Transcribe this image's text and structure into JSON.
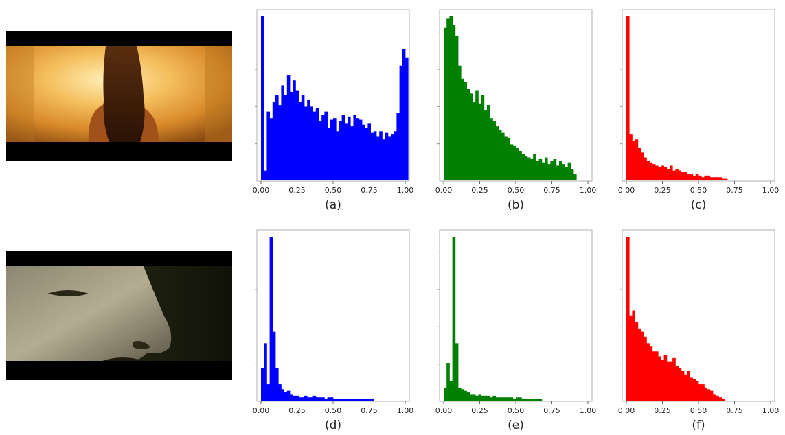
{
  "thumbnails": [
    {
      "name": "woman-back-frame",
      "description_icon": "film-frame-warm-orange"
    },
    {
      "name": "man-face-frame",
      "description_icon": "film-frame-dark-closeup"
    }
  ],
  "chart_data": [
    {
      "type": "bar",
      "caption": "(a)",
      "color": "#0000ff",
      "xlim": [
        0,
        1
      ],
      "xticks": [
        "0.00",
        "0.25",
        "0.50",
        "0.75",
        "1.00"
      ],
      "bin_width": 0.02,
      "values": [
        1.0,
        0.06,
        0.42,
        0.38,
        0.48,
        0.52,
        0.46,
        0.58,
        0.52,
        0.64,
        0.54,
        0.61,
        0.55,
        0.48,
        0.52,
        0.45,
        0.49,
        0.45,
        0.42,
        0.44,
        0.36,
        0.4,
        0.42,
        0.32,
        0.37,
        0.38,
        0.3,
        0.36,
        0.4,
        0.35,
        0.39,
        0.33,
        0.4,
        0.38,
        0.37,
        0.34,
        0.32,
        0.35,
        0.29,
        0.3,
        0.27,
        0.3,
        0.25,
        0.29,
        0.27,
        0.28,
        0.3,
        0.41,
        0.7,
        0.8,
        0.75
      ]
    },
    {
      "type": "bar",
      "caption": "(b)",
      "color": "#008000",
      "xlim": [
        0,
        1
      ],
      "xticks": [
        "0.00",
        "0.25",
        "0.50",
        "0.75",
        "1.00"
      ],
      "bin_width": 0.02,
      "values": [
        0.93,
        0.99,
        1.0,
        0.95,
        0.88,
        0.7,
        0.62,
        0.6,
        0.56,
        0.53,
        0.48,
        0.55,
        0.47,
        0.52,
        0.43,
        0.46,
        0.38,
        0.36,
        0.33,
        0.31,
        0.29,
        0.27,
        0.26,
        0.22,
        0.21,
        0.2,
        0.18,
        0.16,
        0.15,
        0.14,
        0.13,
        0.16,
        0.12,
        0.13,
        0.11,
        0.14,
        0.1,
        0.12,
        0.13,
        0.09,
        0.12,
        0.1,
        0.08,
        0.11,
        0.07,
        0.04
      ]
    },
    {
      "type": "bar",
      "caption": "(c)",
      "color": "#ff0000",
      "xlim": [
        0,
        1
      ],
      "xticks": [
        "0.00",
        "0.25",
        "0.50",
        "0.75",
        "1.00"
      ],
      "bin_width": 0.02,
      "values": [
        1.0,
        0.28,
        0.24,
        0.25,
        0.2,
        0.17,
        0.14,
        0.12,
        0.11,
        0.1,
        0.09,
        0.08,
        0.09,
        0.08,
        0.07,
        0.09,
        0.06,
        0.07,
        0.06,
        0.05,
        0.05,
        0.04,
        0.04,
        0.03,
        0.04,
        0.03,
        0.02,
        0.03,
        0.03,
        0.02,
        0.02,
        0.02,
        0.02,
        0.01,
        0.01
      ]
    },
    {
      "type": "bar",
      "caption": "(d)",
      "color": "#0000ff",
      "xlim": [
        0,
        1
      ],
      "xticks": [
        "0.00",
        "0.25",
        "0.50",
        "0.75",
        "1.00"
      ],
      "bin_width": 0.02,
      "values": [
        0.2,
        0.35,
        0.1,
        1.0,
        0.42,
        0.2,
        0.1,
        0.07,
        0.05,
        0.06,
        0.04,
        0.03,
        0.03,
        0.02,
        0.02,
        0.03,
        0.02,
        0.02,
        0.03,
        0.02,
        0.02,
        0.02,
        0.01,
        0.02,
        0.02,
        0.01,
        0.01,
        0.01,
        0.01,
        0.01,
        0.01,
        0.01,
        0.01,
        0.01,
        0.01,
        0.01,
        0.01,
        0.01,
        0.01
      ]
    },
    {
      "type": "bar",
      "caption": "(e)",
      "color": "#008000",
      "xlim": [
        0,
        1
      ],
      "xticks": [
        "0.00",
        "0.25",
        "0.50",
        "0.75",
        "1.00"
      ],
      "bin_width": 0.02,
      "values": [
        0.08,
        0.23,
        0.12,
        1.0,
        0.35,
        0.08,
        0.07,
        0.06,
        0.05,
        0.04,
        0.04,
        0.03,
        0.04,
        0.03,
        0.03,
        0.03,
        0.02,
        0.03,
        0.02,
        0.02,
        0.02,
        0.02,
        0.02,
        0.02,
        0.01,
        0.02,
        0.02,
        0.01,
        0.01,
        0.01,
        0.01,
        0.01,
        0.01,
        0.01
      ]
    },
    {
      "type": "bar",
      "caption": "(f)",
      "color": "#ff0000",
      "xlim": [
        0,
        1
      ],
      "xticks": [
        "0.00",
        "0.25",
        "0.50",
        "0.75",
        "1.00"
      ],
      "bin_width": 0.02,
      "values": [
        1.0,
        0.52,
        0.55,
        0.48,
        0.44,
        0.42,
        0.39,
        0.35,
        0.33,
        0.3,
        0.3,
        0.27,
        0.25,
        0.28,
        0.24,
        0.24,
        0.26,
        0.21,
        0.2,
        0.18,
        0.16,
        0.18,
        0.14,
        0.13,
        0.12,
        0.1,
        0.1,
        0.08,
        0.07,
        0.06,
        0.04,
        0.03,
        0.02,
        0.01
      ]
    }
  ]
}
